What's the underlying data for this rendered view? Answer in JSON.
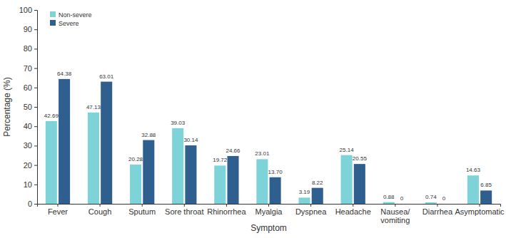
{
  "chart_data": {
    "type": "bar",
    "x_label": "Symptom",
    "y_label": "Percentage (%)",
    "categories": [
      "Fever",
      "Cough",
      "Sputum",
      "Sore throat",
      "Rhinorrhea",
      "Myalgia",
      "Dyspnea",
      "Headache",
      "Nausea/ vomiting",
      "Diarrhea",
      "Asymptomatic"
    ],
    "series": [
      {
        "name": "Non-severe",
        "color": "#7dd3d8",
        "values": [
          42.69,
          47.13,
          20.28,
          39.03,
          19.72,
          23.01,
          3.19,
          25.14,
          0.88,
          0.74,
          14.63
        ],
        "value_labels": [
          "42.69",
          "47.13",
          "20.28",
          "39.03",
          "19.72",
          "23.01",
          "3.19",
          "25.14",
          "0.88",
          "0.74",
          "14.63"
        ]
      },
      {
        "name": "Severe",
        "color": "#2f5f8e",
        "values": [
          64.38,
          63.01,
          32.88,
          30.14,
          24.66,
          13.7,
          8.22,
          20.55,
          0,
          0,
          6.85
        ],
        "value_labels": [
          "64.38",
          "63.01",
          "32.88",
          "30.14",
          "24.66",
          "13.70",
          "8.22",
          "20.55",
          "0",
          "0",
          "6.85"
        ]
      }
    ],
    "ylim": [
      0,
      100
    ],
    "yticks": [
      0,
      10,
      20,
      30,
      40,
      50,
      60,
      70,
      80,
      90,
      100
    ],
    "grid": false,
    "legend": "top-left",
    "data_labels": true
  }
}
